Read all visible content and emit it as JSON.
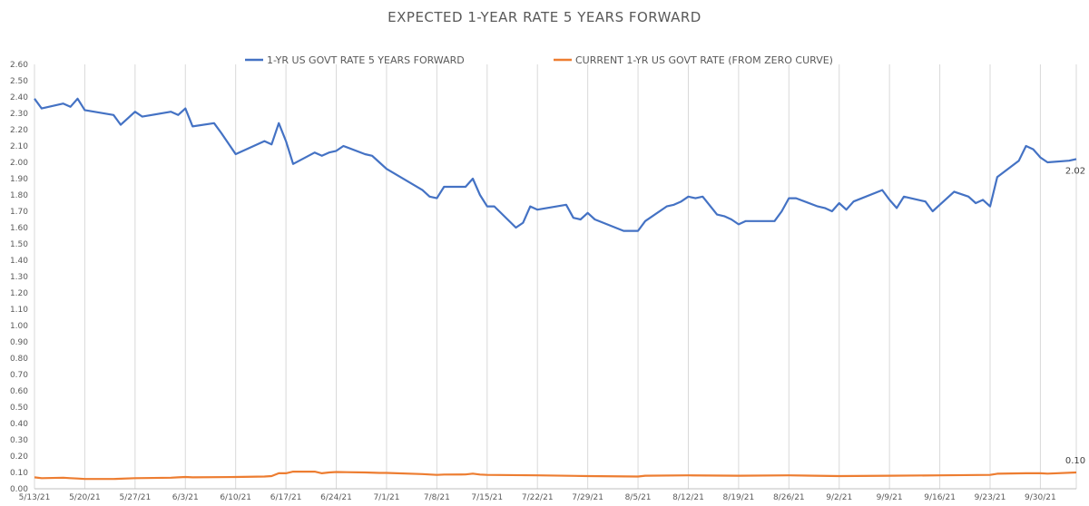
{
  "chart_data": {
    "type": "line",
    "title": "EXPECTED 1-YEAR RATE 5 YEARS FORWARD",
    "xlabel": "",
    "ylabel": "",
    "ylim": [
      0,
      2.6
    ],
    "y_ticks": [
      "0.00",
      "0.10",
      "0.20",
      "0.30",
      "0.40",
      "0.50",
      "0.60",
      "0.70",
      "0.80",
      "0.90",
      "1.00",
      "1.10",
      "1.20",
      "1.30",
      "1.40",
      "1.50",
      "1.60",
      "1.70",
      "1.80",
      "1.90",
      "2.00",
      "2.10",
      "2.20",
      "2.30",
      "2.40",
      "2.50",
      "2.60"
    ],
    "x_tick_labels": [
      "5/13/21",
      "5/20/21",
      "5/27/21",
      "6/3/21",
      "6/10/21",
      "6/17/21",
      "6/24/21",
      "7/1/21",
      "7/8/21",
      "7/15/21",
      "7/22/21",
      "7/29/21",
      "8/5/21",
      "8/12/21",
      "8/19/21",
      "8/26/21",
      "9/2/21",
      "9/9/21",
      "9/16/21",
      "9/23/21",
      "9/30/21"
    ],
    "x_range": [
      "2021-05-13",
      "2021-10-05"
    ],
    "grid": "vertical",
    "legend_position": "top",
    "series": [
      {
        "name": "1-YR US GOVT RATE 5 YEARS FORWARD",
        "color": "#4472c4",
        "end_label": "2.02",
        "points": [
          [
            "2021-05-13",
            2.39
          ],
          [
            "2021-05-14",
            2.33
          ],
          [
            "2021-05-17",
            2.36
          ],
          [
            "2021-05-18",
            2.34
          ],
          [
            "2021-05-19",
            2.39
          ],
          [
            "2021-05-20",
            2.32
          ],
          [
            "2021-05-24",
            2.29
          ],
          [
            "2021-05-25",
            2.23
          ],
          [
            "2021-05-26",
            2.27
          ],
          [
            "2021-05-27",
            2.31
          ],
          [
            "2021-05-28",
            2.28
          ],
          [
            "2021-06-01",
            2.31
          ],
          [
            "2021-06-02",
            2.29
          ],
          [
            "2021-06-03",
            2.33
          ],
          [
            "2021-06-04",
            2.22
          ],
          [
            "2021-06-07",
            2.24
          ],
          [
            "2021-06-08",
            2.18
          ],
          [
            "2021-06-10",
            2.05
          ],
          [
            "2021-06-14",
            2.13
          ],
          [
            "2021-06-15",
            2.11
          ],
          [
            "2021-06-16",
            2.24
          ],
          [
            "2021-06-17",
            2.13
          ],
          [
            "2021-06-18",
            1.99
          ],
          [
            "2021-06-21",
            2.06
          ],
          [
            "2021-06-22",
            2.04
          ],
          [
            "2021-06-23",
            2.06
          ],
          [
            "2021-06-24",
            2.07
          ],
          [
            "2021-06-25",
            2.1
          ],
          [
            "2021-06-28",
            2.05
          ],
          [
            "2021-06-29",
            2.04
          ],
          [
            "2021-06-30",
            2.0
          ],
          [
            "2021-07-01",
            1.96
          ],
          [
            "2021-07-06",
            1.83
          ],
          [
            "2021-07-07",
            1.79
          ],
          [
            "2021-07-08",
            1.78
          ],
          [
            "2021-07-09",
            1.85
          ],
          [
            "2021-07-12",
            1.85
          ],
          [
            "2021-07-13",
            1.9
          ],
          [
            "2021-07-14",
            1.8
          ],
          [
            "2021-07-15",
            1.73
          ],
          [
            "2021-07-16",
            1.73
          ],
          [
            "2021-07-19",
            1.6
          ],
          [
            "2021-07-20",
            1.63
          ],
          [
            "2021-07-21",
            1.73
          ],
          [
            "2021-07-22",
            1.71
          ],
          [
            "2021-07-26",
            1.74
          ],
          [
            "2021-07-27",
            1.66
          ],
          [
            "2021-07-28",
            1.65
          ],
          [
            "2021-07-29",
            1.69
          ],
          [
            "2021-07-30",
            1.65
          ],
          [
            "2021-08-03",
            1.58
          ],
          [
            "2021-08-04",
            1.58
          ],
          [
            "2021-08-05",
            1.58
          ],
          [
            "2021-08-06",
            1.64
          ],
          [
            "2021-08-09",
            1.73
          ],
          [
            "2021-08-10",
            1.74
          ],
          [
            "2021-08-11",
            1.76
          ],
          [
            "2021-08-12",
            1.79
          ],
          [
            "2021-08-13",
            1.78
          ],
          [
            "2021-08-14",
            1.79
          ],
          [
            "2021-08-16",
            1.68
          ],
          [
            "2021-08-17",
            1.67
          ],
          [
            "2021-08-18",
            1.65
          ],
          [
            "2021-08-19",
            1.62
          ],
          [
            "2021-08-20",
            1.64
          ],
          [
            "2021-08-24",
            1.64
          ],
          [
            "2021-08-25",
            1.7
          ],
          [
            "2021-08-26",
            1.78
          ],
          [
            "2021-08-27",
            1.78
          ],
          [
            "2021-08-30",
            1.73
          ],
          [
            "2021-08-31",
            1.72
          ],
          [
            "2021-09-01",
            1.7
          ],
          [
            "2021-09-02",
            1.75
          ],
          [
            "2021-09-03",
            1.71
          ],
          [
            "2021-09-04",
            1.76
          ],
          [
            "2021-09-08",
            1.83
          ],
          [
            "2021-09-09",
            1.77
          ],
          [
            "2021-09-10",
            1.72
          ],
          [
            "2021-09-11",
            1.79
          ],
          [
            "2021-09-13",
            1.77
          ],
          [
            "2021-09-14",
            1.76
          ],
          [
            "2021-09-15",
            1.7
          ],
          [
            "2021-09-16",
            1.74
          ],
          [
            "2021-09-18",
            1.82
          ],
          [
            "2021-09-20",
            1.79
          ],
          [
            "2021-09-21",
            1.75
          ],
          [
            "2021-09-22",
            1.77
          ],
          [
            "2021-09-23",
            1.73
          ],
          [
            "2021-09-24",
            1.91
          ],
          [
            "2021-09-27",
            2.01
          ],
          [
            "2021-09-28",
            2.1
          ],
          [
            "2021-09-29",
            2.08
          ],
          [
            "2021-09-30",
            2.03
          ],
          [
            "2021-10-01",
            2.0
          ],
          [
            "2021-10-04",
            2.01
          ],
          [
            "2021-10-05",
            2.02
          ]
        ]
      },
      {
        "name": "CURRENT 1-YR US GOVT RATE (FROM ZERO CURVE)",
        "color": "#ed7d31",
        "end_label": "0.10",
        "points": [
          [
            "2021-05-13",
            0.07
          ],
          [
            "2021-05-14",
            0.065
          ],
          [
            "2021-05-17",
            0.068
          ],
          [
            "2021-05-18",
            0.065
          ],
          [
            "2021-05-19",
            0.063
          ],
          [
            "2021-05-20",
            0.06
          ],
          [
            "2021-05-24",
            0.06
          ],
          [
            "2021-05-27",
            0.065
          ],
          [
            "2021-06-01",
            0.068
          ],
          [
            "2021-06-02",
            0.07
          ],
          [
            "2021-06-03",
            0.072
          ],
          [
            "2021-06-04",
            0.07
          ],
          [
            "2021-06-10",
            0.072
          ],
          [
            "2021-06-14",
            0.075
          ],
          [
            "2021-06-15",
            0.078
          ],
          [
            "2021-06-16",
            0.095
          ],
          [
            "2021-06-17",
            0.095
          ],
          [
            "2021-06-18",
            0.105
          ],
          [
            "2021-06-21",
            0.105
          ],
          [
            "2021-06-22",
            0.095
          ],
          [
            "2021-06-23",
            0.1
          ],
          [
            "2021-06-24",
            0.103
          ],
          [
            "2021-06-28",
            0.1
          ],
          [
            "2021-06-30",
            0.097
          ],
          [
            "2021-07-01",
            0.097
          ],
          [
            "2021-07-06",
            0.09
          ],
          [
            "2021-07-08",
            0.085
          ],
          [
            "2021-07-09",
            0.087
          ],
          [
            "2021-07-12",
            0.088
          ],
          [
            "2021-07-13",
            0.093
          ],
          [
            "2021-07-14",
            0.087
          ],
          [
            "2021-07-15",
            0.085
          ],
          [
            "2021-07-22",
            0.082
          ],
          [
            "2021-07-29",
            0.078
          ],
          [
            "2021-08-05",
            0.075
          ],
          [
            "2021-08-06",
            0.08
          ],
          [
            "2021-08-12",
            0.082
          ],
          [
            "2021-08-19",
            0.08
          ],
          [
            "2021-08-26",
            0.082
          ],
          [
            "2021-09-02",
            0.078
          ],
          [
            "2021-09-09",
            0.08
          ],
          [
            "2021-09-16",
            0.082
          ],
          [
            "2021-09-23",
            0.085
          ],
          [
            "2021-09-24",
            0.092
          ],
          [
            "2021-09-28",
            0.095
          ],
          [
            "2021-09-30",
            0.095
          ],
          [
            "2021-10-01",
            0.093
          ],
          [
            "2021-10-05",
            0.1
          ]
        ]
      }
    ]
  }
}
